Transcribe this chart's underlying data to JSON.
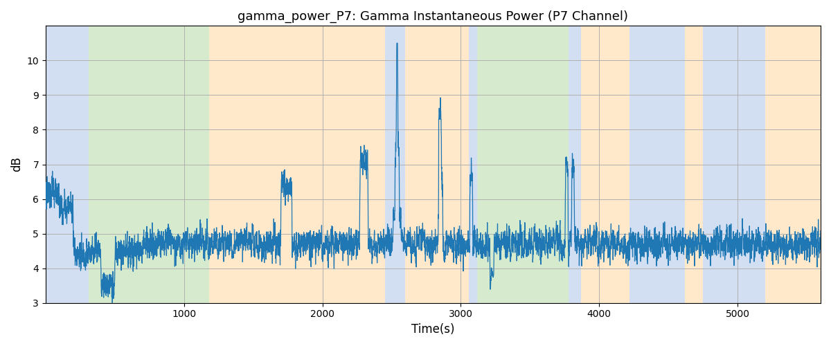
{
  "title": "gamma_power_P7: Gamma Instantaneous Power (P7 Channel)",
  "xlabel": "Time(s)",
  "ylabel": "dB",
  "xlim": [
    0,
    5600
  ],
  "ylim": [
    3,
    11
  ],
  "yticks": [
    3,
    4,
    5,
    6,
    7,
    8,
    9,
    10
  ],
  "xticks": [
    1000,
    2000,
    3000,
    4000,
    5000
  ],
  "line_color": "#1f77b4",
  "bg_regions": [
    {
      "xstart": 0,
      "xend": 170,
      "color": "#aec6e8",
      "alpha": 0.55
    },
    {
      "xstart": 170,
      "xend": 310,
      "color": "#aec6e8",
      "alpha": 0.55
    },
    {
      "xstart": 310,
      "xend": 1180,
      "color": "#b5d9a5",
      "alpha": 0.55
    },
    {
      "xstart": 1180,
      "xend": 2450,
      "color": "#ffd8a0",
      "alpha": 0.55
    },
    {
      "xstart": 2450,
      "xend": 2600,
      "color": "#aec6e8",
      "alpha": 0.55
    },
    {
      "xstart": 2600,
      "xend": 3060,
      "color": "#ffd8a0",
      "alpha": 0.55
    },
    {
      "xstart": 3060,
      "xend": 3120,
      "color": "#aec6e8",
      "alpha": 0.55
    },
    {
      "xstart": 3120,
      "xend": 3780,
      "color": "#b5d9a5",
      "alpha": 0.55
    },
    {
      "xstart": 3780,
      "xend": 3870,
      "color": "#aec6e8",
      "alpha": 0.55
    },
    {
      "xstart": 3870,
      "xend": 4220,
      "color": "#ffd8a0",
      "alpha": 0.55
    },
    {
      "xstart": 4220,
      "xend": 4620,
      "color": "#aec6e8",
      "alpha": 0.55
    },
    {
      "xstart": 4620,
      "xend": 4750,
      "color": "#ffd8a0",
      "alpha": 0.55
    },
    {
      "xstart": 4750,
      "xend": 5200,
      "color": "#aec6e8",
      "alpha": 0.55
    },
    {
      "xstart": 5200,
      "xend": 5600,
      "color": "#ffd8a0",
      "alpha": 0.55
    }
  ],
  "grid_color": "#b0b0b0",
  "fig_facecolor": "#ffffff",
  "random_seed": 42,
  "n_points": 5600
}
